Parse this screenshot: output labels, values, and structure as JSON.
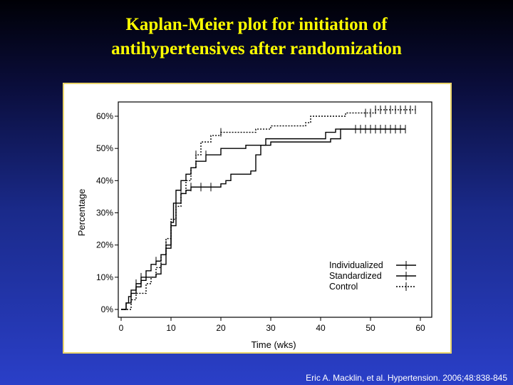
{
  "title_lines": [
    "Kaplan-Meier plot for initiation of",
    "antihypertensives after randomization"
  ],
  "citation": "Eric A. Macklin, et al. Hypertension. 2006;48:838-845",
  "chart_data": {
    "type": "line",
    "subtype": "kaplan-meier step",
    "title": "",
    "xlabel": "Time (wks)",
    "ylabel": "Percentage",
    "xlim": [
      0,
      60
    ],
    "ylim": [
      0,
      60
    ],
    "x_ticks": [
      0,
      10,
      20,
      30,
      40,
      50,
      60
    ],
    "y_ticks": [
      0,
      10,
      20,
      30,
      40,
      50,
      60
    ],
    "y_tick_labels": [
      "0%",
      "10%",
      "20%",
      "30%",
      "40%",
      "50%",
      "60%"
    ],
    "grid": false,
    "legend_placement": "bottom-right",
    "series": [
      {
        "name": "Individualized",
        "line_style": "solid",
        "points": [
          [
            0,
            0
          ],
          [
            1,
            2
          ],
          [
            1.5,
            4
          ],
          [
            2,
            6
          ],
          [
            3,
            8
          ],
          [
            4,
            10
          ],
          [
            5,
            12
          ],
          [
            6,
            14
          ],
          [
            7,
            15
          ],
          [
            8,
            17
          ],
          [
            9,
            20
          ],
          [
            10,
            27
          ],
          [
            10.5,
            33
          ],
          [
            11,
            37
          ],
          [
            12,
            40
          ],
          [
            13,
            42
          ],
          [
            14,
            44
          ],
          [
            15,
            46
          ],
          [
            17,
            48
          ],
          [
            20,
            50
          ],
          [
            25,
            51
          ],
          [
            29,
            53
          ],
          [
            41,
            55
          ],
          [
            43,
            56
          ],
          [
            57,
            56
          ]
        ],
        "censor_x": [
          3,
          4,
          7,
          9,
          17,
          47,
          48,
          49,
          50,
          51,
          52,
          53,
          54,
          55,
          56
        ]
      },
      {
        "name": "Standardized",
        "line_style": "solid",
        "points": [
          [
            0,
            0
          ],
          [
            1,
            2
          ],
          [
            2,
            5
          ],
          [
            3,
            7
          ],
          [
            4,
            9
          ],
          [
            5,
            10
          ],
          [
            7,
            11
          ],
          [
            8,
            14
          ],
          [
            9,
            19
          ],
          [
            10,
            26
          ],
          [
            11,
            33
          ],
          [
            12,
            36
          ],
          [
            13,
            37
          ],
          [
            14,
            38
          ],
          [
            18,
            38
          ],
          [
            20,
            39
          ],
          [
            21,
            40
          ],
          [
            22,
            42
          ],
          [
            26,
            43
          ],
          [
            27,
            48
          ],
          [
            28,
            51
          ],
          [
            30,
            52
          ],
          [
            42,
            53
          ],
          [
            44,
            56
          ],
          [
            57,
            56
          ]
        ],
        "censor_x": [
          12,
          14,
          16,
          18,
          49,
          50,
          51,
          52,
          53,
          54,
          55,
          57
        ]
      },
      {
        "name": "Control",
        "line_style": "dotted",
        "points": [
          [
            0,
            0
          ],
          [
            2,
            3
          ],
          [
            3,
            5
          ],
          [
            5,
            8
          ],
          [
            6,
            10
          ],
          [
            7,
            13
          ],
          [
            8,
            17
          ],
          [
            9,
            22
          ],
          [
            10,
            28
          ],
          [
            11,
            32
          ],
          [
            12,
            36
          ],
          [
            13,
            40
          ],
          [
            14,
            44
          ],
          [
            15,
            48
          ],
          [
            16,
            52
          ],
          [
            18,
            54
          ],
          [
            20,
            55
          ],
          [
            27,
            56
          ],
          [
            30,
            57
          ],
          [
            37,
            58
          ],
          [
            38,
            60
          ],
          [
            44,
            60
          ],
          [
            45,
            61
          ],
          [
            50,
            61
          ],
          [
            51,
            62
          ],
          [
            59,
            62
          ]
        ],
        "censor_x": [
          12,
          15,
          20,
          49,
          50,
          51,
          52,
          53,
          54,
          55,
          56,
          57,
          58,
          59
        ]
      }
    ]
  }
}
